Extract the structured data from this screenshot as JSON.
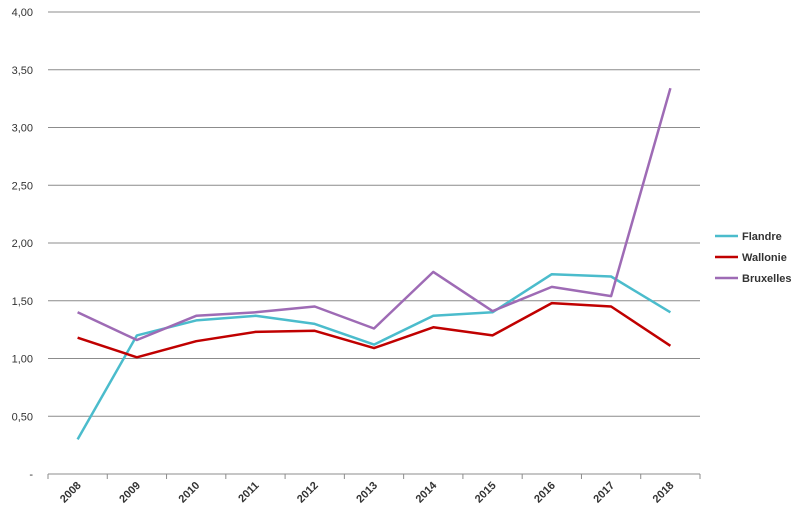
{
  "chart_data": {
    "type": "line",
    "x": [
      "2008",
      "2009",
      "2010",
      "2011",
      "2012",
      "2013",
      "2014",
      "2015",
      "2016",
      "2017",
      "2018"
    ],
    "series": [
      {
        "name": "Flandre",
        "color": "#4bbccc",
        "values": [
          0.3,
          1.2,
          1.33,
          1.37,
          1.3,
          1.12,
          1.37,
          1.4,
          1.73,
          1.71,
          1.4
        ]
      },
      {
        "name": "Wallonie",
        "color": "#c00000",
        "values": [
          1.18,
          1.01,
          1.15,
          1.23,
          1.24,
          1.09,
          1.27,
          1.2,
          1.48,
          1.45,
          1.11
        ]
      },
      {
        "name": "Bruxelles",
        "color": "#9e6bb5",
        "values": [
          1.4,
          1.16,
          1.37,
          1.4,
          1.45,
          1.26,
          1.75,
          1.41,
          1.62,
          1.54,
          3.34
        ]
      }
    ],
    "ylim": [
      0,
      4
    ],
    "y_ticks": [
      {
        "value": 0,
        "label": "-"
      },
      {
        "value": 0.5,
        "label": "0,50"
      },
      {
        "value": 1,
        "label": "1,00"
      },
      {
        "value": 1.5,
        "label": "1,50"
      },
      {
        "value": 2,
        "label": "2,00"
      },
      {
        "value": 2.5,
        "label": "2,50"
      },
      {
        "value": 3,
        "label": "3,00"
      },
      {
        "value": 3.5,
        "label": "3,50"
      },
      {
        "value": 4,
        "label": "4,00"
      }
    ],
    "grid": true,
    "legend": "right",
    "gridline_color": "#8c8c8c"
  }
}
